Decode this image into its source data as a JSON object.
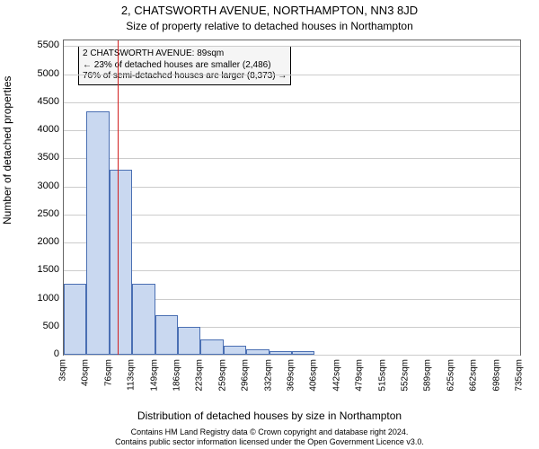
{
  "title": "2, CHATSWORTH AVENUE, NORTHAMPTON, NN3 8JD",
  "subtitle": "Size of property relative to detached houses in Northampton",
  "xlabel": "Distribution of detached houses by size in Northampton",
  "ylabel": "Number of detached properties",
  "chart": {
    "type": "histogram",
    "background_color": "#ffffff",
    "grid_color": "#cccccc",
    "axis_color": "#666666",
    "bar_fill": "#c9d8f0",
    "bar_stroke": "#4a6fb3",
    "marker_color": "#d21f1f",
    "y": {
      "min": 0,
      "max": 5600,
      "ticks": [
        0,
        500,
        1000,
        1500,
        2000,
        2500,
        3000,
        3500,
        4000,
        4500,
        5000,
        5500
      ]
    },
    "x_ticks": [
      "3sqm",
      "40sqm",
      "76sqm",
      "113sqm",
      "149sqm",
      "186sqm",
      "223sqm",
      "259sqm",
      "296sqm",
      "332sqm",
      "369sqm",
      "406sqm",
      "442sqm",
      "479sqm",
      "515sqm",
      "552sqm",
      "589sqm",
      "625sqm",
      "662sqm",
      "698sqm",
      "735sqm"
    ],
    "bars": [
      1260,
      4330,
      3300,
      1260,
      700,
      500,
      280,
      160,
      100,
      70,
      60,
      0,
      0,
      0,
      0,
      0,
      0,
      0,
      0,
      0
    ],
    "marker_at_bin_boundary": 2,
    "annotation": {
      "line1": "2 CHATSWORTH AVENUE: 89sqm",
      "line2": "← 23% of detached houses are smaller (2,486)",
      "line3": "76% of semi-detached houses are larger (8,373) →",
      "bg": "#f5f5f5"
    }
  },
  "footer1": "Contains HM Land Registry data © Crown copyright and database right 2024.",
  "footer2": "Contains public sector information licensed under the Open Government Licence v3.0."
}
